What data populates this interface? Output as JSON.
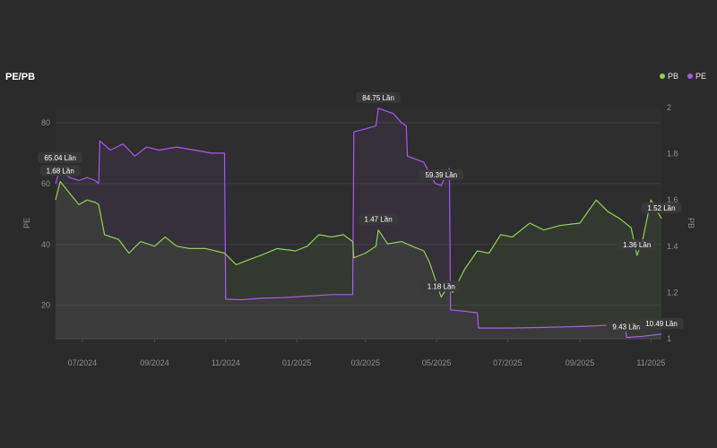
{
  "header": {
    "title": "PE/PB",
    "legend": [
      {
        "name": "PB",
        "color": "#8fd14f"
      },
      {
        "name": "PE",
        "color": "#a855f7"
      }
    ]
  },
  "chart_data": {
    "type": "line",
    "title": "PE/PB",
    "x_range": [
      "2024-06-08",
      "2025-11-10"
    ],
    "x_ticks": [
      {
        "label": "07/2024",
        "date": "2024-07-01"
      },
      {
        "label": "09/2024",
        "date": "2024-09-01"
      },
      {
        "label": "11/2024",
        "date": "2024-11-01"
      },
      {
        "label": "01/2025",
        "date": "2025-01-01"
      },
      {
        "label": "03/2025",
        "date": "2025-03-01"
      },
      {
        "label": "05/2025",
        "date": "2025-05-01"
      },
      {
        "label": "07/2025",
        "date": "2025-07-01"
      },
      {
        "label": "09/2025",
        "date": "2025-09-01"
      },
      {
        "label": "11/2025",
        "date": "2025-11-01"
      }
    ],
    "y_left": {
      "label": "PE",
      "ylim": [
        9,
        85
      ],
      "ticks": [
        20,
        40,
        60,
        80
      ]
    },
    "y_right": {
      "label": "PB",
      "ylim": [
        1,
        2
      ],
      "ticks": [
        1,
        1.2,
        1.4,
        1.6,
        1.8,
        2
      ]
    },
    "grid": true,
    "legend_position": "top-right",
    "series": [
      {
        "name": "PE",
        "axis": "left",
        "color": "#a855f7",
        "points": [
          [
            "2024-06-08",
            60
          ],
          [
            "2024-06-12",
            65
          ],
          [
            "2024-06-20",
            62
          ],
          [
            "2024-06-28",
            61
          ],
          [
            "2024-07-05",
            62
          ],
          [
            "2024-07-12",
            61
          ],
          [
            "2024-07-15",
            60
          ],
          [
            "2024-07-16",
            74
          ],
          [
            "2024-07-25",
            71
          ],
          [
            "2024-08-05",
            73
          ],
          [
            "2024-08-15",
            69
          ],
          [
            "2024-08-25",
            72
          ],
          [
            "2024-09-05",
            71
          ],
          [
            "2024-09-20",
            72
          ],
          [
            "2024-10-05",
            71
          ],
          [
            "2024-10-20",
            70
          ],
          [
            "2024-10-31",
            70
          ],
          [
            "2024-11-01",
            22
          ],
          [
            "2024-11-15",
            21.8
          ],
          [
            "2024-12-01",
            22.3
          ],
          [
            "2024-12-20",
            22.5
          ],
          [
            "2025-01-10",
            23
          ],
          [
            "2025-01-31",
            23.5
          ],
          [
            "2025-02-18",
            23.5
          ],
          [
            "2025-02-19",
            77
          ],
          [
            "2025-03-01",
            78
          ],
          [
            "2025-03-10",
            79
          ],
          [
            "2025-03-12",
            84.75
          ],
          [
            "2025-03-25",
            83
          ],
          [
            "2025-04-01",
            80
          ],
          [
            "2025-04-05",
            79
          ],
          [
            "2025-04-06",
            69
          ],
          [
            "2025-04-20",
            67
          ],
          [
            "2025-04-30",
            60
          ],
          [
            "2025-05-05",
            59.39
          ],
          [
            "2025-05-12",
            65
          ],
          [
            "2025-05-13",
            18.5
          ],
          [
            "2025-05-25",
            18
          ],
          [
            "2025-06-05",
            17.5
          ],
          [
            "2025-06-06",
            12.5
          ],
          [
            "2025-07-01",
            12.5
          ],
          [
            "2025-08-01",
            12.7
          ],
          [
            "2025-09-01",
            13
          ],
          [
            "2025-10-01",
            13.5
          ],
          [
            "2025-10-10",
            13
          ],
          [
            "2025-10-11",
            9.43
          ],
          [
            "2025-10-25",
            9.8
          ],
          [
            "2025-11-10",
            10.49
          ]
        ],
        "annotations": [
          {
            "date": "2024-06-12",
            "value": 65.04,
            "label": "65.04 Lần"
          },
          {
            "date": "2025-03-12",
            "value": 84.75,
            "label": "84.75 Lần"
          },
          {
            "date": "2025-05-05",
            "value": 59.39,
            "label": "59.39 Lần"
          },
          {
            "date": "2025-10-11",
            "value": 9.43,
            "label": "9.43 Lần"
          },
          {
            "date": "2025-11-10",
            "value": 10.49,
            "label": "10.49 Lần"
          }
        ]
      },
      {
        "name": "PB",
        "axis": "right",
        "color": "#8fd14f",
        "points": [
          [
            "2024-06-08",
            1.6
          ],
          [
            "2024-06-12",
            1.68
          ],
          [
            "2024-06-20",
            1.63
          ],
          [
            "2024-06-28",
            1.58
          ],
          [
            "2024-07-05",
            1.6
          ],
          [
            "2024-07-12",
            1.59
          ],
          [
            "2024-07-15",
            1.58
          ],
          [
            "2024-07-20",
            1.45
          ],
          [
            "2024-08-01",
            1.43
          ],
          [
            "2024-08-10",
            1.37
          ],
          [
            "2024-08-20",
            1.42
          ],
          [
            "2024-09-01",
            1.4
          ],
          [
            "2024-09-10",
            1.44
          ],
          [
            "2024-09-20",
            1.4
          ],
          [
            "2024-10-01",
            1.39
          ],
          [
            "2024-10-15",
            1.39
          ],
          [
            "2024-10-31",
            1.37
          ],
          [
            "2024-11-10",
            1.32
          ],
          [
            "2024-11-20",
            1.34
          ],
          [
            "2024-12-01",
            1.36
          ],
          [
            "2024-12-15",
            1.39
          ],
          [
            "2024-12-31",
            1.38
          ],
          [
            "2025-01-10",
            1.4
          ],
          [
            "2025-01-20",
            1.45
          ],
          [
            "2025-01-31",
            1.44
          ],
          [
            "2025-02-10",
            1.45
          ],
          [
            "2025-02-18",
            1.42
          ],
          [
            "2025-02-19",
            1.35
          ],
          [
            "2025-03-01",
            1.37
          ],
          [
            "2025-03-10",
            1.4
          ],
          [
            "2025-03-12",
            1.47
          ],
          [
            "2025-03-20",
            1.41
          ],
          [
            "2025-04-01",
            1.42
          ],
          [
            "2025-04-10",
            1.4
          ],
          [
            "2025-04-20",
            1.38
          ],
          [
            "2025-04-25",
            1.33
          ],
          [
            "2025-05-05",
            1.18
          ],
          [
            "2025-05-10",
            1.22
          ],
          [
            "2025-05-15",
            1.2
          ],
          [
            "2025-05-25",
            1.3
          ],
          [
            "2025-06-05",
            1.38
          ],
          [
            "2025-06-15",
            1.37
          ],
          [
            "2025-06-25",
            1.45
          ],
          [
            "2025-07-05",
            1.44
          ],
          [
            "2025-07-20",
            1.5
          ],
          [
            "2025-08-01",
            1.47
          ],
          [
            "2025-08-15",
            1.49
          ],
          [
            "2025-09-01",
            1.5
          ],
          [
            "2025-09-15",
            1.6
          ],
          [
            "2025-09-25",
            1.55
          ],
          [
            "2025-10-05",
            1.52
          ],
          [
            "2025-10-15",
            1.48
          ],
          [
            "2025-10-20",
            1.36
          ],
          [
            "2025-10-25",
            1.43
          ],
          [
            "2025-11-01",
            1.6
          ],
          [
            "2025-11-10",
            1.52
          ]
        ],
        "annotations": [
          {
            "date": "2024-06-12",
            "value": 1.68,
            "label": "1.68 Lần"
          },
          {
            "date": "2025-03-12",
            "value": 1.47,
            "label": "1.47 Lần"
          },
          {
            "date": "2025-05-05",
            "value": 1.18,
            "label": "1.18 Lần"
          },
          {
            "date": "2025-10-20",
            "value": 1.36,
            "label": "1.36 Lần"
          },
          {
            "date": "2025-11-10",
            "value": 1.52,
            "label": "1.52 Lần"
          }
        ]
      }
    ]
  }
}
